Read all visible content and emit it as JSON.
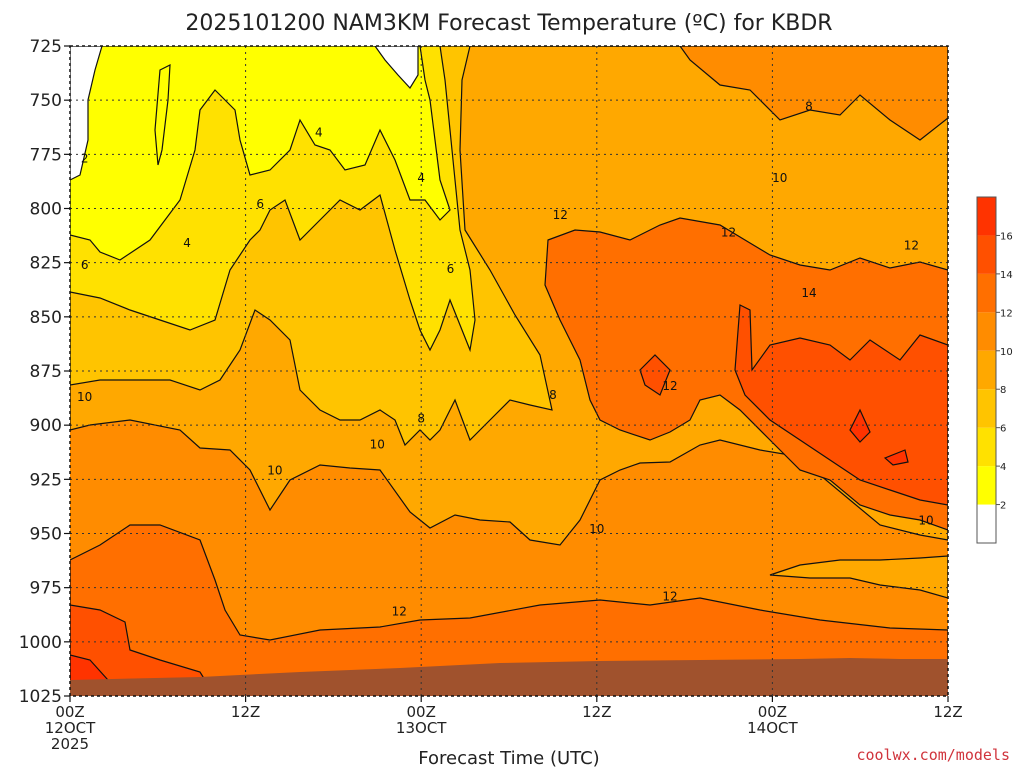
{
  "chart_data": {
    "type": "heatmap",
    "title": "2025101200 NAM3KM Forecast Temperature (ºC) for KBDR",
    "xlabel": "Forecast Time (UTC)",
    "ylabel": "",
    "x_ticks": [
      {
        "hour": 0,
        "lines": [
          "00Z",
          "12OCT",
          "2025"
        ]
      },
      {
        "hour": 12,
        "lines": [
          "12Z"
        ]
      },
      {
        "hour": 24,
        "lines": [
          "00Z",
          "13OCT"
        ]
      },
      {
        "hour": 36,
        "lines": [
          "12Z"
        ]
      },
      {
        "hour": 48,
        "lines": [
          "00Z",
          "14OCT"
        ]
      },
      {
        "hour": 60,
        "lines": [
          "12Z"
        ]
      }
    ],
    "xlim": [
      0,
      60
    ],
    "y_ticks": [
      725,
      750,
      775,
      800,
      825,
      850,
      875,
      900,
      925,
      950,
      975,
      1000,
      1025
    ],
    "ylim": [
      725,
      1025
    ],
    "colorbar": {
      "levels": [
        2,
        4,
        6,
        8,
        10,
        12,
        14,
        16
      ],
      "labels": [
        "2",
        "4",
        "6",
        "8",
        "10",
        "12",
        "14",
        "16"
      ],
      "colors": [
        "#ffffff",
        "#ffff00",
        "#ffe100",
        "#ffc400",
        "#ffa800",
        "#ff8c00",
        "#ff6f00",
        "#ff5000",
        "#ff3300"
      ]
    },
    "surface_color": "#a0522d",
    "contour_labels": [
      {
        "text": "2",
        "hour": 1.0,
        "p": 777
      },
      {
        "text": "4",
        "hour": 8.0,
        "p": 816
      },
      {
        "text": "4",
        "hour": 17.0,
        "p": 765
      },
      {
        "text": "4",
        "hour": 24.0,
        "p": 786
      },
      {
        "text": "6",
        "hour": 1.0,
        "p": 826
      },
      {
        "text": "6",
        "hour": 13.0,
        "p": 798
      },
      {
        "text": "6",
        "hour": 26.0,
        "p": 828
      },
      {
        "text": "8",
        "hour": 24.0,
        "p": 897
      },
      {
        "text": "8",
        "hour": 33.0,
        "p": 886
      },
      {
        "text": "10",
        "hour": 1.0,
        "p": 887
      },
      {
        "text": "10",
        "hour": 14.0,
        "p": 921
      },
      {
        "text": "10",
        "hour": 21.0,
        "p": 909
      },
      {
        "text": "10",
        "hour": 36.0,
        "p": 948
      },
      {
        "text": "10",
        "hour": 48.5,
        "p": 786
      },
      {
        "text": "10",
        "hour": 58.5,
        "p": 944
      },
      {
        "text": "8",
        "hour": 50.5,
        "p": 753
      },
      {
        "text": "12",
        "hour": 33.5,
        "p": 803
      },
      {
        "text": "12",
        "hour": 41.0,
        "p": 882
      },
      {
        "text": "12",
        "hour": 41.0,
        "p": 979
      },
      {
        "text": "12",
        "hour": 22.5,
        "p": 986
      },
      {
        "text": "12",
        "hour": 45.0,
        "p": 811
      },
      {
        "text": "12",
        "hour": 57.5,
        "p": 817
      },
      {
        "text": "14",
        "hour": 50.5,
        "p": 839
      }
    ]
  },
  "credit": "coolwx.com/models"
}
